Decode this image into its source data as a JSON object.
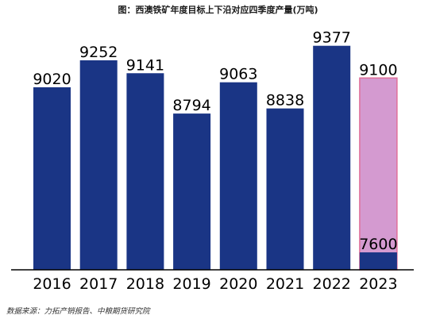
{
  "chart_data": {
    "type": "bar",
    "title": "图：西澳铁矿年度目标上下沿对应四季度产量(万吨)",
    "categories": [
      "2016",
      "2017",
      "2018",
      "2019",
      "2020",
      "2021",
      "2022",
      "2023"
    ],
    "series": [
      {
        "values": [
          9020,
          9252,
          9141,
          8794,
          9063,
          8838,
          9377,
          7600
        ],
        "color": "#1a3585"
      },
      {
        "values": [
          null,
          null,
          null,
          null,
          null,
          null,
          null,
          9100
        ],
        "color": "#d49ad0",
        "border": "#e0709a"
      }
    ],
    "data_labels": [
      "9020",
      "9252",
      "9141",
      "8794",
      "9063",
      "8838",
      "9377",
      "7600"
    ],
    "target_upper_label": "9100",
    "ylim": [
      7450,
      9450
    ],
    "grid": false,
    "legend": "none"
  },
  "source_text": "数据来源：力拓产销报告、中粮期货研究院"
}
